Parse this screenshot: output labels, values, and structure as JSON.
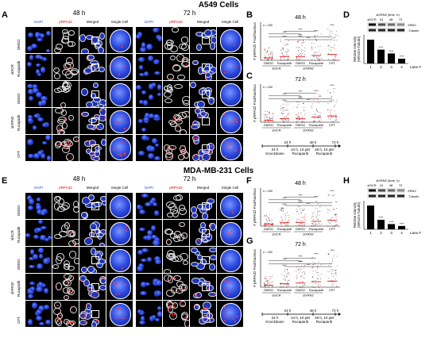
{
  "sections": [
    {
      "title": "A549 Cells",
      "panel_images": "A",
      "panel_b": "B",
      "panel_c": "C",
      "panel_d": "D",
      "time_a": "48 h",
      "time_b": "72 h",
      "columns": [
        "DAPI",
        "pRPA32",
        "Merged",
        "Single Cell"
      ],
      "rows": [
        {
          "group": "siSCR",
          "drug": "DMSO"
        },
        {
          "group": "siSCR",
          "drug": "Rucaparib"
        },
        {
          "group": "siXRN2",
          "drug": "DMSO"
        },
        {
          "group": "siXRN2",
          "drug": "Rucaparib"
        },
        {
          "group": "",
          "drug": "CPT"
        }
      ]
    },
    {
      "title": "MDA-MB-231 Cells",
      "panel_images": "E",
      "panel_b": "F",
      "panel_c": "G",
      "panel_d": "H",
      "time_a": "48 h",
      "time_b": "72 h",
      "columns": [
        "DAPI",
        "pRPA32",
        "Merged",
        "Single Cell"
      ],
      "rows": [
        {
          "group": "siSCR",
          "drug": "DMSO"
        },
        {
          "group": "siSCR",
          "drug": "Rucaparib"
        },
        {
          "group": "siXRN2",
          "drug": "DMSO"
        },
        {
          "group": "siXRN2",
          "drug": "Rucaparib"
        },
        {
          "group": "",
          "drug": "CPT"
        }
      ]
    }
  ],
  "scatter_panels": {
    "ylabel": "# pRPA32 Foci/Nucleus",
    "n_label": "n = 250",
    "sig": "****",
    "categories": [
      "DMSO",
      "Rucaparib",
      "DMSO",
      "Rucaparib",
      "CPT"
    ],
    "group_labels": [
      "siSCR",
      "siXRN2"
    ],
    "titles": {
      "B": "48 h",
      "C": "72 h",
      "F": "48 h",
      "G": "72 h"
    }
  },
  "timeline": {
    "ticks": [
      "24 h",
      "48 h",
      "72 h"
    ],
    "segments": [
      "24 h\nKnockdown",
      "24 h, 10 μM\nRucaparib",
      "48 h, 10 μM\nRucaparib"
    ]
  },
  "western": {
    "header": "siXRN2 (time, h)",
    "lanes_header": [
      "siSCR",
      "24",
      "48",
      "72"
    ],
    "band1": "XRN2",
    "band2": "Tubulin",
    "lane_label": "Lane #",
    "lanes": [
      "1",
      "2",
      "3",
      "4"
    ],
    "ylabel": "Relative Intensity\n(XRN2/α-Tubulin)",
    "sig": "****"
  },
  "chart_data": [
    {
      "type": "bar",
      "title": "",
      "categories": [
        "1",
        "2",
        "3",
        "4"
      ],
      "values": [
        1.0,
        0.58,
        0.42,
        0.2
      ],
      "ylim": [
        0,
        1.2
      ],
      "xlabel": "Lane #",
      "ylabel": "Relative Intensity (XRN2/α-Tubulin)"
    },
    {
      "type": "bar",
      "title": "",
      "categories": [
        "1",
        "2",
        "3",
        "4"
      ],
      "values": [
        1.0,
        0.4,
        0.22,
        0.14
      ],
      "ylim": [
        0,
        1.2
      ],
      "xlabel": "Lane #",
      "ylabel": "Relative Intensity (XRN2/α-Tubulin)"
    }
  ]
}
